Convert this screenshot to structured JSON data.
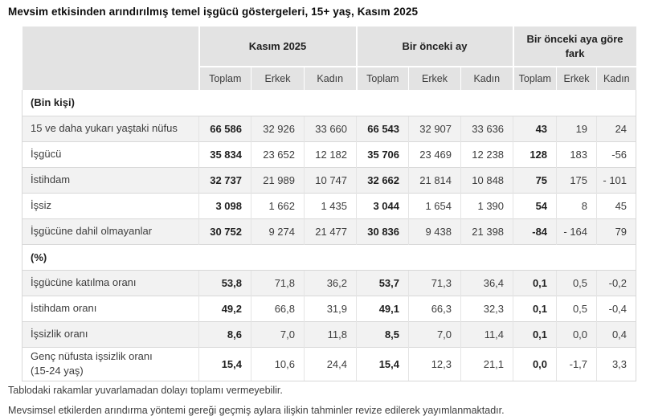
{
  "title": "Mevsim etkisinden arındırılmış temel işgücü göstergeleri, 15+ yaş, Kasım 2025",
  "table": {
    "groups": [
      "Kasım 2025",
      "Bir önceki ay",
      "Bir önceki aya göre fark"
    ],
    "sub": [
      "Toplam",
      "Erkek",
      "Kadın"
    ],
    "rows": [
      {
        "type": "section",
        "label": "(Bin kişi)"
      },
      {
        "type": "data",
        "label": "15 ve daha yukarı yaştaki nüfus",
        "values": [
          "66 586",
          "32 926",
          "33 660",
          "66 543",
          "32 907",
          "33 636",
          "43",
          "19",
          "24"
        ]
      },
      {
        "type": "data",
        "label": "İşgücü",
        "values": [
          "35 834",
          "23 652",
          "12 182",
          "35 706",
          "23 469",
          "12 238",
          "128",
          "183",
          "-56"
        ]
      },
      {
        "type": "data",
        "label": "İstihdam",
        "values": [
          "32 737",
          "21 989",
          "10 747",
          "32 662",
          "21 814",
          "10 848",
          "75",
          "175",
          "- 101"
        ]
      },
      {
        "type": "data",
        "label": "İşsiz",
        "values": [
          "3 098",
          "1 662",
          "1 435",
          "3 044",
          "1 654",
          "1 390",
          "54",
          "8",
          "45"
        ]
      },
      {
        "type": "data",
        "label": "İşgücüne dahil olmayanlar",
        "values": [
          "30 752",
          "9 274",
          "21 477",
          "30 836",
          "9 438",
          "21 398",
          "-84",
          "- 164",
          "79"
        ]
      },
      {
        "type": "section",
        "label": "(%)"
      },
      {
        "type": "data",
        "label": "İşgücüne katılma oranı",
        "values": [
          "53,8",
          "71,8",
          "36,2",
          "53,7",
          "71,3",
          "36,4",
          "0,1",
          "0,5",
          "-0,2"
        ]
      },
      {
        "type": "data",
        "label": "İstihdam oranı",
        "values": [
          "49,2",
          "66,8",
          "31,9",
          "49,1",
          "66,3",
          "32,3",
          "0,1",
          "0,5",
          "-0,4"
        ]
      },
      {
        "type": "data",
        "label": "İşsizlik oranı",
        "values": [
          "8,6",
          "7,0",
          "11,8",
          "8,5",
          "7,0",
          "11,4",
          "0,1",
          "0,0",
          "0,4"
        ]
      },
      {
        "type": "data",
        "label": "Genç nüfusta işsizlik oranı",
        "label2": "(15-24 yaş)",
        "values": [
          "15,4",
          "10,6",
          "24,4",
          "15,4",
          "12,3",
          "21,1",
          "0,0",
          "-1,7",
          "3,3"
        ]
      }
    ]
  },
  "colors": {
    "header_bg": "#e3e3e3",
    "stripe_bg": "#f2f2f2",
    "border": "#d8d8d8"
  },
  "footnotes": [
    "Tablodaki rakamlar yuvarlamadan dolayı toplamı vermeyebilir.",
    "Mevsimsel etkilerden arındırma yöntemi gereği geçmiş aylara ilişkin tahminler revize edilerek yayımlanmaktadır."
  ]
}
